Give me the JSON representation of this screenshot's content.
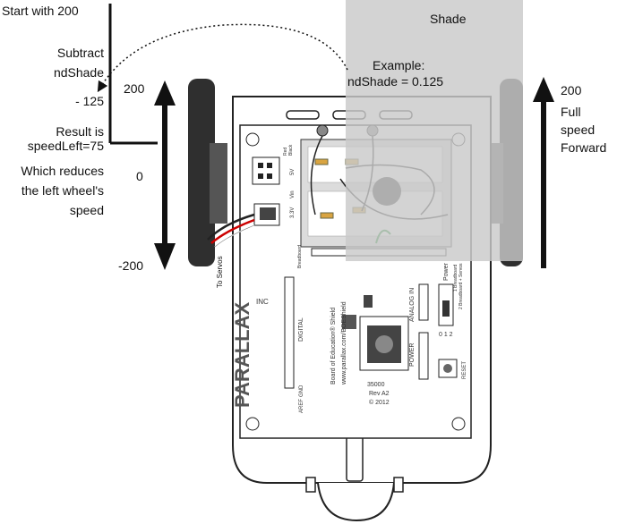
{
  "left_labels": {
    "start": "Start with 200",
    "subtract_1": "Subtract",
    "subtract_2": "ndShade",
    "minus": "- 125",
    "result_1": "Result is",
    "result_2": "speedLeft=75",
    "reduce_1": "Which reduces",
    "reduce_2": "the left wheel's",
    "reduce_3": "speed"
  },
  "left_scale": {
    "top": "200",
    "mid": "0",
    "bottom": "-200"
  },
  "shade": {
    "title": "Shade",
    "example_1": "Example:",
    "example_2": "ndShade = 0.125"
  },
  "right_labels": {
    "value": "200",
    "line1": "Full",
    "line2": "speed",
    "line3": "Forward"
  },
  "board": {
    "logo": "PARALLAX",
    "inc": "INC",
    "shield_name": "Board of Education® Shield",
    "url": "www.parallax.com/BOEShield",
    "part": "35000",
    "rev": "Rev A2",
    "copyright": "© 2012",
    "to_servos": "To Servos",
    "digital": "DIGITAL",
    "analog_in": "ANALOG IN",
    "power": "POWER",
    "power_switch": "Power",
    "breadboard_1": "1 Breadboard",
    "breadboard_2": "2 Breadboard + Servos",
    "switch_nums": "0  1  2",
    "reset": "RESET",
    "gnd": "GND",
    "aref": "AREF",
    "header_label": "Breadboard",
    "red": "Red",
    "black": "Black",
    "v5": "5V",
    "v33": "3.3V",
    "vin": "Vin"
  },
  "colors": {
    "shade_fill": "#c9c9c9",
    "board_fill": "#ffffff",
    "wheel": "#2f2f2f",
    "breadboard": "#dcdcdc",
    "arrow": "#111111"
  }
}
